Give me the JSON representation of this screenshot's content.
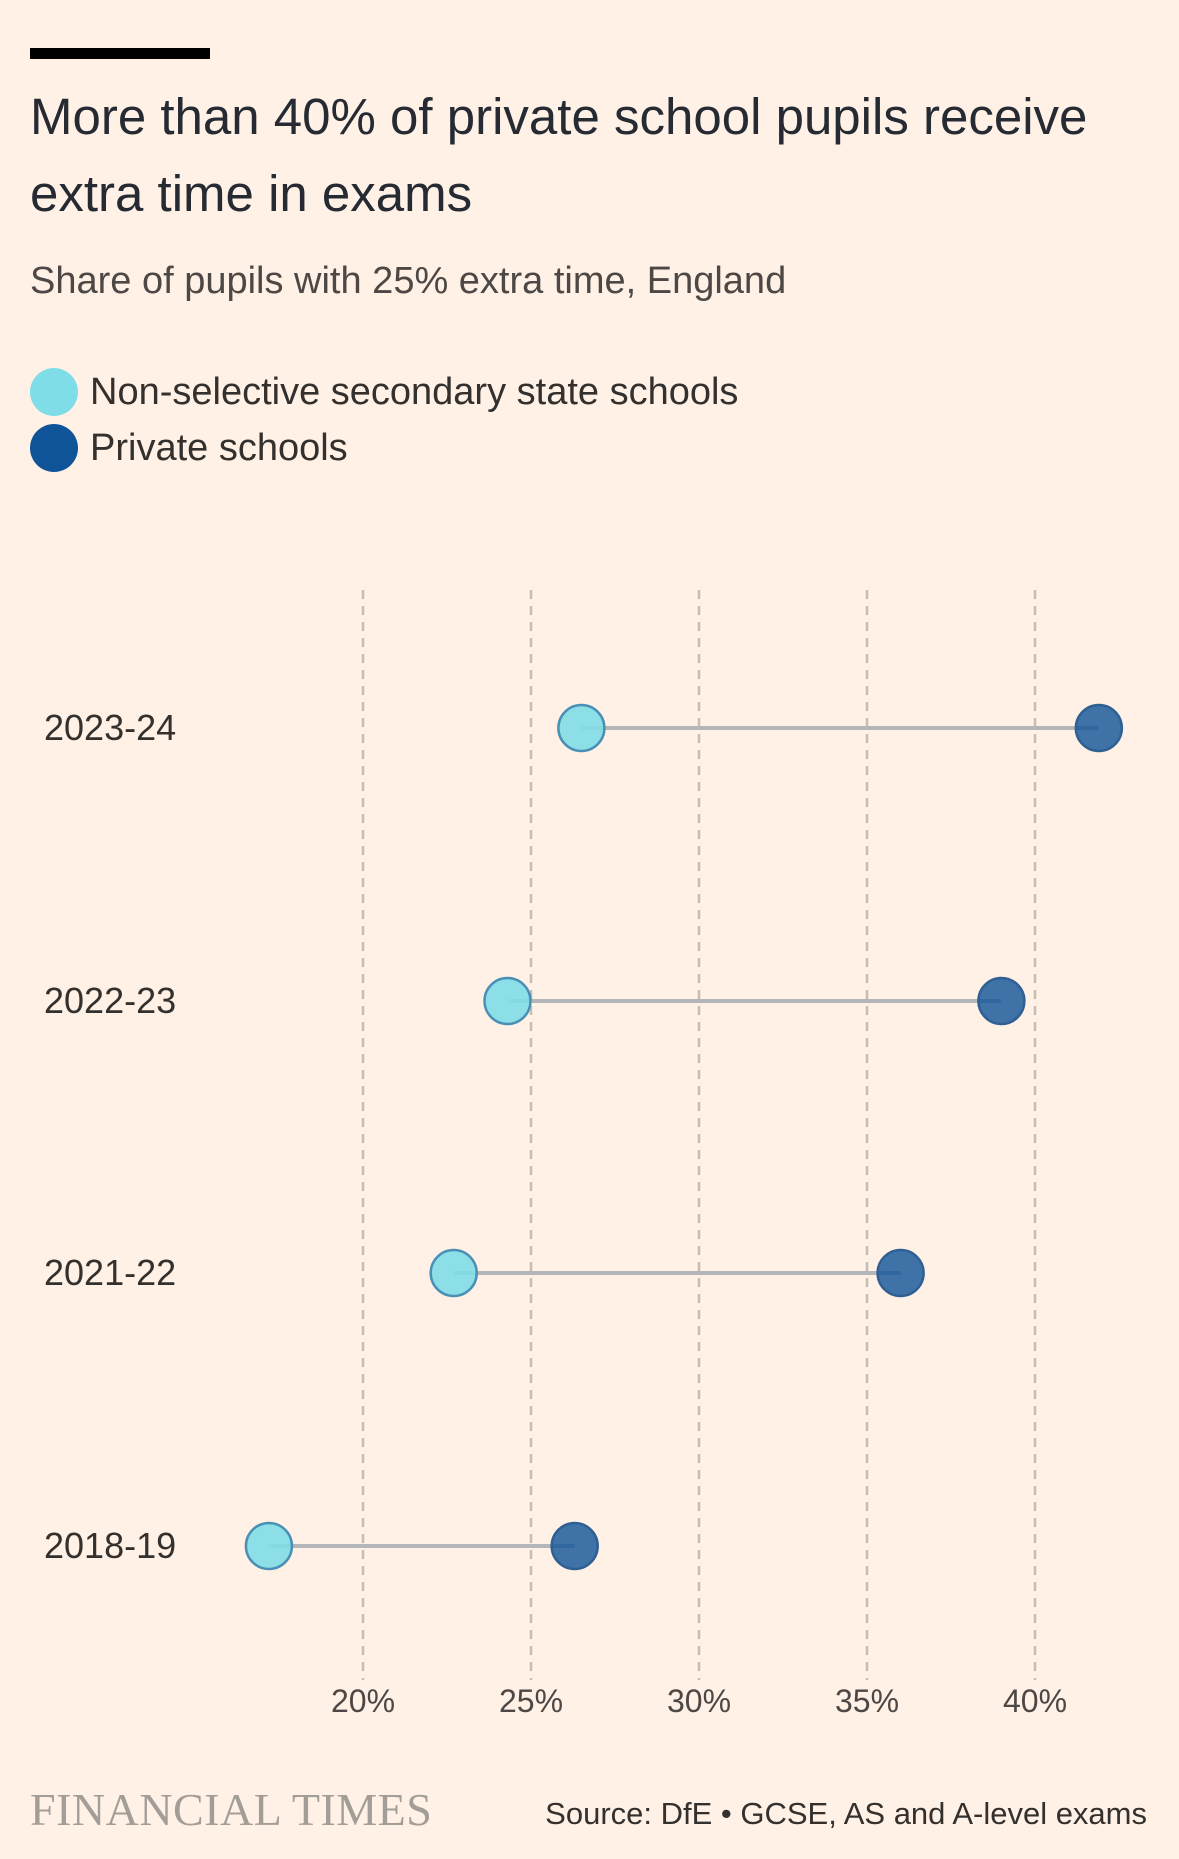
{
  "header": {
    "title": "More than 40% of private school pupils receive extra time in exams",
    "subtitle": "Share of pupils with 25% extra time, England"
  },
  "legend": {
    "items": [
      {
        "label": "Non-selective secondary state schools",
        "color": "#7fdde7"
      },
      {
        "label": "Private schools",
        "color": "#0f5499"
      }
    ]
  },
  "footer": {
    "logo": "FINANCIAL TIMES",
    "source": "Source: DfE • GCSE, AS and A-level exams"
  },
  "chart_data": {
    "type": "dumbbell",
    "x_ticks": [
      "20%",
      "25%",
      "30%",
      "35%",
      "40%"
    ],
    "x_tick_values": [
      20,
      25,
      30,
      35,
      40
    ],
    "xlim": [
      15,
      43
    ],
    "grid": "vertical dashed",
    "categories": [
      "2023-24",
      "2022-23",
      "2021-22",
      "2018-19"
    ],
    "series": [
      {
        "name": "Non-selective secondary state schools",
        "color": "#7fdde7",
        "values": [
          26.5,
          24.3,
          22.7,
          17.2
        ]
      },
      {
        "name": "Private schools",
        "color": "#0f5499",
        "values": [
          41.9,
          39.0,
          36.0,
          26.3
        ]
      }
    ]
  }
}
